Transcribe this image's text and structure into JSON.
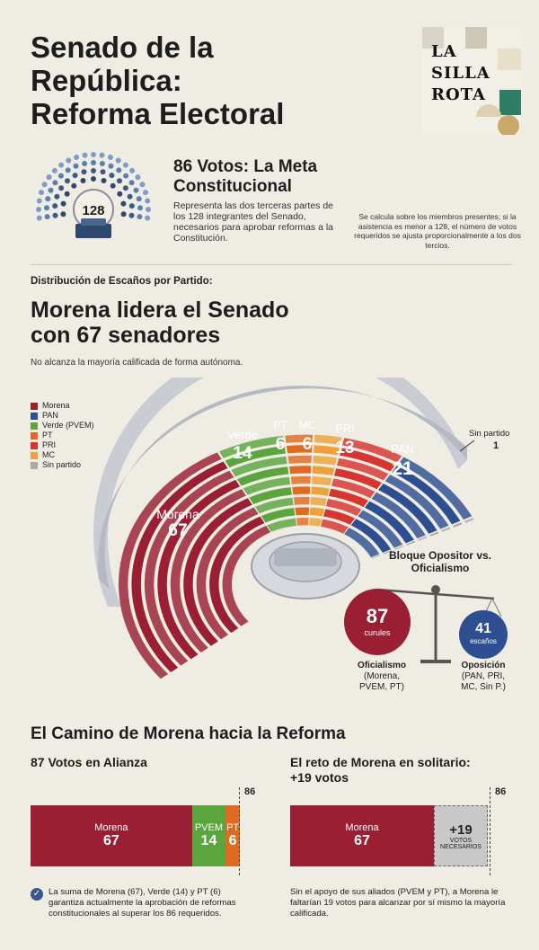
{
  "header": {
    "title_lines": [
      "Senado de la",
      "República:",
      "Reforma Electoral"
    ],
    "logo_lines": [
      "LA",
      "SILLA",
      "ROTA"
    ]
  },
  "goal": {
    "total_seats": "128",
    "title_lines": [
      "86 Votos: La Meta",
      "Constitucional"
    ],
    "description": "Representa las dos terceras partes de los 128 integrantes del Senado, necesarios para aprobar reformas a la Constitución.",
    "note": "Se calcula sobre los miembros presentes; si la asistencia es menor a 128, el número de votos requeridos se ajusta proporcionalmente a los dos tercios."
  },
  "distribution": {
    "label": "Distribución de Escaños por Partido:",
    "headline_lines": [
      "Morena lidera el Senado",
      "con 67 senadores"
    ],
    "subheadline": "No alcanza la mayoría calificada de forma autónoma.",
    "legend": [
      {
        "label": "Morena",
        "color": "#9a1f33"
      },
      {
        "label": "PAN",
        "color": "#2d4f92"
      },
      {
        "label": "Verde (PVEM)",
        "color": "#5aa53e"
      },
      {
        "label": "PT",
        "color": "#e06a22"
      },
      {
        "label": "PRI",
        "color": "#d7352f"
      },
      {
        "label": "MC",
        "color": "#eea13a"
      },
      {
        "label": "Sin partido",
        "color": "#a8a8a8"
      }
    ],
    "parties": {
      "morena": {
        "name": "Morena",
        "seats": "67"
      },
      "verde": {
        "name": "Verde",
        "seats": "14"
      },
      "pt": {
        "name": "PT",
        "seats": "6"
      },
      "mc": {
        "name": "MC",
        "seats": "6"
      },
      "pri": {
        "name": "PRI",
        "seats": "13"
      },
      "pan": {
        "name": "PAN",
        "seats": "21"
      },
      "sin": {
        "name": "Sin partido",
        "seats": "1"
      }
    }
  },
  "bloc": {
    "title_lines": [
      "Bloque Opositor vs.",
      "Oficialismo"
    ],
    "oficialismo": {
      "value": "87",
      "unit": "curules",
      "label": "Oficialismo",
      "detail_lines": [
        "(Morena,",
        "PVEM, PT)"
      ]
    },
    "oposicion": {
      "value": "41",
      "unit": "escaños",
      "label": "Oposición",
      "detail_lines": [
        "(PAN, PRI,",
        "MC, Sin P.)"
      ]
    }
  },
  "path": {
    "title": "El Camino de Morena hacia la Reforma",
    "left": {
      "subtitle": "87 Votos en Alianza",
      "threshold": "86",
      "segments": [
        {
          "label": "Morena",
          "value": "67",
          "color": "#9a1f33"
        },
        {
          "label": "PVEM",
          "value": "14",
          "color": "#5aa53e"
        },
        {
          "label": "PT",
          "value": "6",
          "color": "#e06a22"
        }
      ],
      "footnote": "La suma de Morena (67), Verde (14) y PT (6) garantiza actualmente la aprobación de reformas constitucionales al superar los 86 requeridos."
    },
    "right": {
      "subtitle_lines": [
        "El reto de Morena en solitario:",
        "+19 votos"
      ],
      "threshold": "86",
      "morena": {
        "label": "Morena",
        "value": "67"
      },
      "gap": {
        "value": "+19",
        "label_lines": [
          "VOTOS",
          "NECESARIOS"
        ]
      },
      "footnote": "Sin el apoyo de sus aliados (PVEM y PT), a Morena le faltarían 19 votos para alcanzar por sí mismo la mayoría calificada."
    }
  }
}
